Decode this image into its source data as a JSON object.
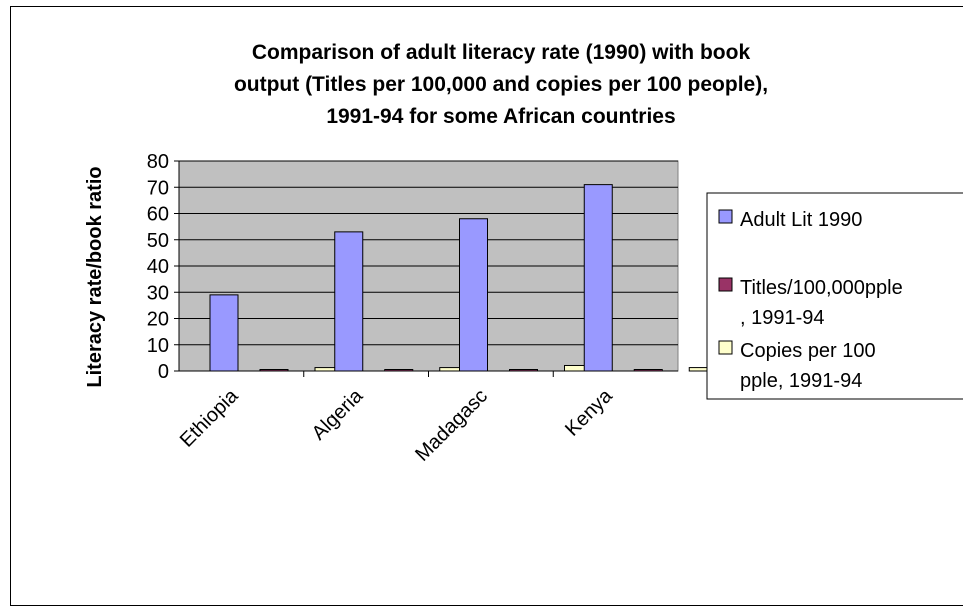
{
  "chart_data": {
    "type": "bar",
    "title_lines": [
      "Comparison of adult literacy rate (1990) with book",
      "output (Titles per 100,000 and copies per 100 people),",
      "1991-94 for some African countries"
    ],
    "xlabel": "",
    "ylabel": "Literacy rate/book ratio",
    "ylim": [
      0,
      80
    ],
    "yticks": [
      "0",
      "10",
      "20",
      "30",
      "40",
      "50",
      "60",
      "70",
      "80"
    ],
    "categories": [
      "Ethiopia",
      "Algeria",
      "Madagasc",
      "Kenya"
    ],
    "series": [
      {
        "name": "Adult Lit 1990",
        "legend_lines": [
          "Adult Lit 1990"
        ],
        "color": "#9999FF",
        "values": [
          29,
          53,
          58,
          71
        ]
      },
      {
        "name": "Titles/100,000pple, 1991-94",
        "legend_lines": [
          "Titles/100,000pple",
          ", 1991-94"
        ],
        "color": "#993366",
        "values": [
          0.3,
          0.3,
          0.3,
          0.3
        ]
      },
      {
        "name": "Copies per 100 pple, 1991-94",
        "legend_lines": [
          "Copies per 100",
          "pple, 1991-94"
        ],
        "color": "#FFFFCC",
        "values": [
          1.3,
          1.3,
          2.1,
          1.3
        ]
      }
    ],
    "plot_background": "#C0C0C0",
    "grid": true,
    "legend_position": "right"
  }
}
